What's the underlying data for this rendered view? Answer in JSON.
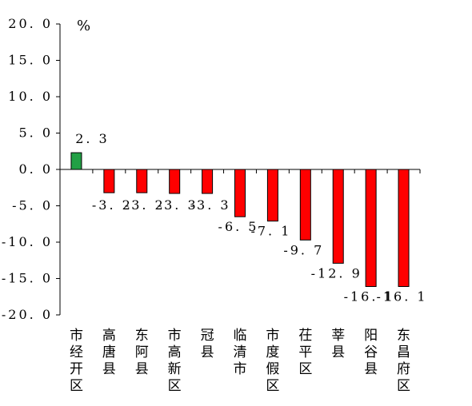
{
  "chart_data": {
    "type": "bar",
    "unit": "%",
    "categories": [
      "市经开区",
      "高唐县",
      "东阿县",
      "市高新区",
      "冠县",
      "临清市",
      "市度假区",
      "茌平区",
      "莘县",
      "阳谷县",
      "东昌府区"
    ],
    "values": [
      2.3,
      -3.2,
      -3.2,
      -3.3,
      -3.3,
      -6.5,
      -7.1,
      -9.7,
      -12.9,
      -16.1,
      -16.1
    ],
    "value_labels": [
      "2. 3",
      "-3. 2",
      "-3. 2",
      "-3. 3",
      "-3. 3",
      "-6. 5",
      "-7. 1",
      "-9. 7",
      "-12. 9",
      "-16. 1",
      "-16. 1"
    ],
    "yticks": [
      20.0,
      15.0,
      10.0,
      5.0,
      0.0,
      -5.0,
      -10.0,
      -15.0,
      -20.0
    ],
    "ytick_labels": [
      "20. 0",
      "15. 0",
      "10. 0",
      "5. 0",
      "0. 0",
      "-5. 0",
      "-10. 0",
      "-15. 0",
      "-20. 0"
    ],
    "ylim": [
      -20,
      20
    ],
    "colors": {
      "positive": "#22a045",
      "negative": "#ff0000",
      "axis": "#000000"
    },
    "grid": false,
    "legend": "none"
  }
}
